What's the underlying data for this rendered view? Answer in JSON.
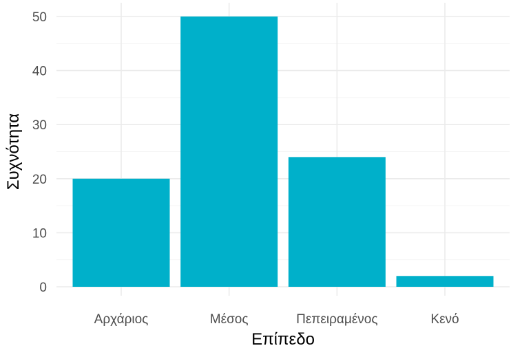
{
  "chart_data": {
    "type": "bar",
    "title": "",
    "xlabel": "Επίπεδο",
    "ylabel": "Συχνότητα",
    "categories": [
      "Αρχάριος",
      "Μέσος",
      "Πεπειραμένος",
      "Κενό"
    ],
    "values": [
      20,
      50,
      24,
      2
    ],
    "ylim": [
      0,
      52
    ],
    "yticks": [
      0,
      10,
      20,
      30,
      40,
      50
    ],
    "grid": true,
    "legend": "none",
    "colors": {
      "bar": "#00b0ca",
      "gridline": "#ebebeb",
      "tick_text": "#4d4d4d",
      "axis_title": "#000000"
    }
  }
}
